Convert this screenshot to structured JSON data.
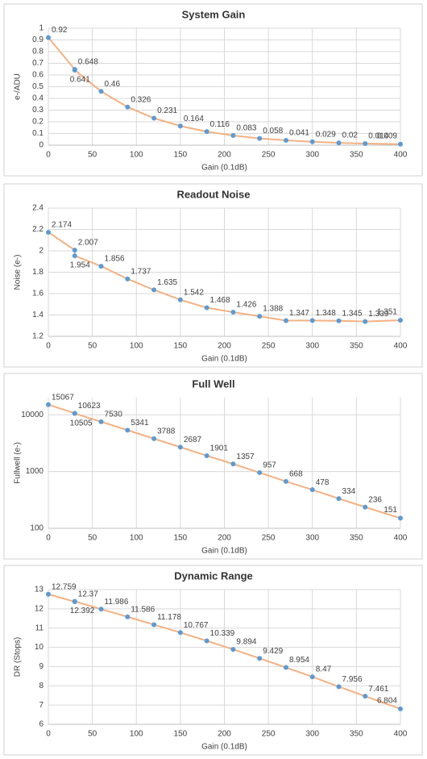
{
  "chart_data": [
    {
      "type": "line",
      "title": "System Gain",
      "x_label": "Gain (0.1dB)",
      "y_label": "e-/ADU",
      "x": [
        0,
        30,
        30,
        60,
        90,
        120,
        150,
        180,
        210,
        240,
        270,
        300,
        330,
        360,
        400
      ],
      "values": [
        0.92,
        0.648,
        0.641,
        0.46,
        0.326,
        0.231,
        0.164,
        0.116,
        0.083,
        0.058,
        0.041,
        0.029,
        0.02,
        0.014,
        0.009
      ],
      "line_color": "#f4b183",
      "marker_color": "#5b9bd5",
      "xlim": [
        0,
        400
      ],
      "xticks": [
        0,
        50,
        100,
        150,
        200,
        250,
        300,
        350,
        400
      ],
      "ylim": [
        0,
        1
      ],
      "yticks": [
        0,
        0.1,
        0.2,
        0.3,
        0.4,
        0.5,
        0.6,
        0.7,
        0.8,
        0.9,
        1
      ],
      "yscale": "linear",
      "grid": true
    },
    {
      "type": "line",
      "title": "Readout Noise",
      "x_label": "Gain (0.1dB)",
      "y_label": "Noise (e-)",
      "x": [
        0,
        30,
        30,
        60,
        90,
        120,
        150,
        180,
        210,
        240,
        270,
        300,
        330,
        360,
        400
      ],
      "values": [
        2.174,
        2.007,
        1.954,
        1.856,
        1.737,
        1.635,
        1.542,
        1.468,
        1.426,
        1.388,
        1.347,
        1.348,
        1.345,
        1.339,
        1.351
      ],
      "line_color": "#f4b183",
      "marker_color": "#5b9bd5",
      "xlim": [
        0,
        400
      ],
      "xticks": [
        0,
        50,
        100,
        150,
        200,
        250,
        300,
        350,
        400
      ],
      "ylim": [
        1.2,
        2.4
      ],
      "yticks": [
        1.2,
        1.4,
        1.6,
        1.8,
        2,
        2.2,
        2.4
      ],
      "yscale": "linear",
      "grid": true
    },
    {
      "type": "line",
      "title": "Full Well",
      "x_label": "Gain (0.1dB)",
      "y_label": "Fullwell (e-)",
      "x": [
        0,
        30,
        30,
        60,
        90,
        120,
        150,
        180,
        210,
        240,
        270,
        300,
        330,
        360,
        400
      ],
      "values": [
        15067,
        10623,
        10505,
        7530,
        5341,
        3788,
        2687,
        1901,
        1357,
        957,
        668,
        478,
        334,
        236,
        151
      ],
      "line_color": "#f4b183",
      "marker_color": "#5b9bd5",
      "xlim": [
        0,
        400
      ],
      "xticks": [
        0,
        50,
        100,
        150,
        200,
        250,
        300,
        350,
        400
      ],
      "ylim": [
        100,
        20000
      ],
      "yticks": [
        100,
        1000,
        10000
      ],
      "yscale": "log",
      "grid": true
    },
    {
      "type": "line",
      "title": "Dynamic Range",
      "x_label": "Gain (0.1dB)",
      "y_label": "DR (Stops)",
      "x": [
        0,
        30,
        30,
        60,
        90,
        120,
        150,
        180,
        210,
        240,
        270,
        300,
        330,
        360,
        400
      ],
      "values": [
        12.759,
        12.37,
        12.392,
        11.986,
        11.586,
        11.178,
        10.767,
        10.339,
        9.894,
        9.429,
        8.954,
        8.47,
        7.956,
        7.461,
        6.804
      ],
      "line_color": "#f4b183",
      "marker_color": "#5b9bd5",
      "xlim": [
        0,
        400
      ],
      "xticks": [
        0,
        50,
        100,
        150,
        200,
        250,
        300,
        350,
        400
      ],
      "ylim": [
        6,
        13
      ],
      "yticks": [
        6,
        7,
        8,
        9,
        10,
        11,
        12,
        13
      ],
      "yscale": "linear",
      "grid": true
    }
  ]
}
